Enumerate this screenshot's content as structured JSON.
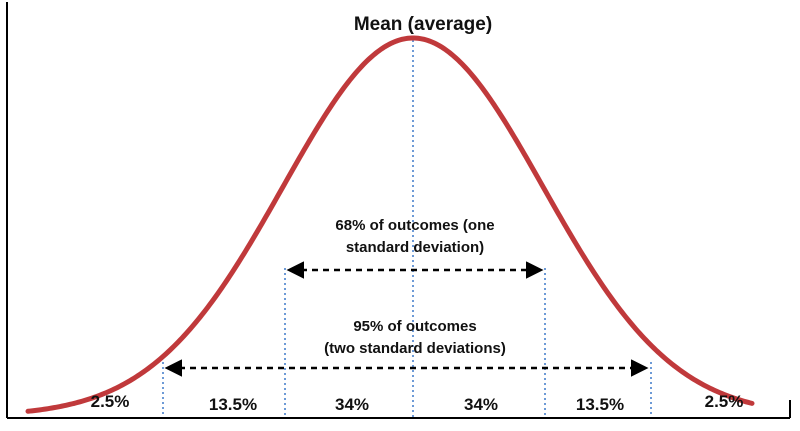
{
  "diagram": {
    "mean_label": "Mean (average)",
    "one_sd_label": [
      "68% of outcomes (one",
      "standard deviation)"
    ],
    "two_sd_label": [
      "95% of outcomes",
      "(two standard deviations)"
    ],
    "segments": [
      "2.5%",
      "13.5%",
      "34%",
      "34%",
      "13.5%",
      "2.5%"
    ]
  },
  "colors": {
    "curve": "#c0393b",
    "guide_lines": "#2f6fc4",
    "arrows": "#000000",
    "frame": "#000000"
  }
}
